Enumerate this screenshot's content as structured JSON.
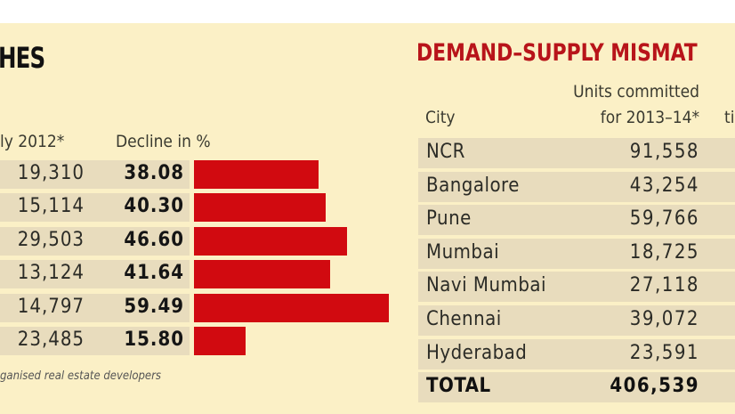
{
  "left": {
    "title_fragment": "HES",
    "col1_header": "ly 2012*",
    "col2_header": "Decline in %",
    "footnote": "ganised real estate developers"
  },
  "right": {
    "title": "DEMAND–SUPPLY MISMAT",
    "col_city": "City",
    "col_units_line1": "Units committed",
    "col_units_line2": "for 2013–14*",
    "col3_fragment": "ti"
  },
  "colors": {
    "bar": "#d10a10",
    "title_red": "#b8141a",
    "background": "#fbf0c6",
    "row": "#e8dcbd"
  },
  "chart_data": {
    "type": "bar",
    "orientation": "horizontal",
    "title": "",
    "series": [
      {
        "name": "Decline in %",
        "values": [
          38.08,
          40.3,
          46.6,
          41.64,
          59.49,
          15.8
        ]
      }
    ],
    "july_2012": [
      "19,310",
      "15,114",
      "29,503",
      "13,124",
      "14,797",
      "23,485"
    ],
    "decline_labels": [
      "38.08",
      "40.30",
      "46.60",
      "41.64",
      "59.49",
      "15.80"
    ],
    "xlim": [
      0,
      60
    ]
  },
  "table": {
    "rows": [
      {
        "city": "NCR",
        "units": "91,558"
      },
      {
        "city": "Bangalore",
        "units": "43,254"
      },
      {
        "city": "Pune",
        "units": "59,766"
      },
      {
        "city": "Mumbai",
        "units": "18,725"
      },
      {
        "city": "Navi Mumbai",
        "units": "27,118"
      },
      {
        "city": "Chennai",
        "units": "39,072"
      },
      {
        "city": "Hyderabad",
        "units": "23,591"
      }
    ],
    "total": {
      "city": "TOTAL",
      "units": "406,539"
    }
  }
}
